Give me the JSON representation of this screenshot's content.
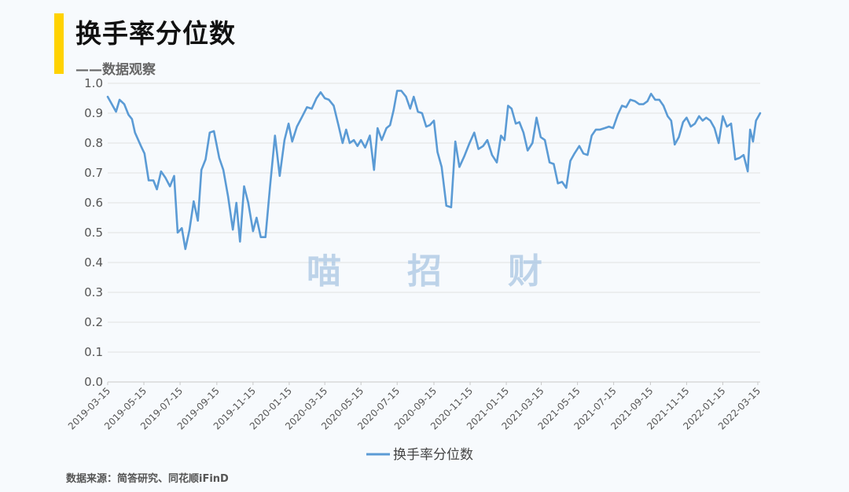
{
  "header": {
    "title": "换手率分位数",
    "subtitle": "——数据观察",
    "accent_color": "#ffd200"
  },
  "footer": {
    "source": "数据来源：简答研究、同花顺iFinD"
  },
  "watermark": {
    "chars": [
      "喵",
      "招",
      "财"
    ],
    "color": "#aac6e2"
  },
  "chart_data": {
    "type": "line",
    "title": "",
    "xlabel": "",
    "ylabel": "",
    "ylim": [
      0,
      1.0
    ],
    "y_ticks": [
      "0.0",
      "0.1",
      "0.2",
      "0.3",
      "0.4",
      "0.5",
      "0.6",
      "0.7",
      "0.8",
      "0.9",
      "1.0"
    ],
    "x_ticks": [
      "2019-03-15",
      "2019-05-15",
      "2019-07-15",
      "2019-09-15",
      "2019-11-15",
      "2020-01-15",
      "2020-03-15",
      "2020-05-15",
      "2020-07-15",
      "2020-09-15",
      "2020-11-15",
      "2021-01-15",
      "2021-03-15",
      "2021-05-15",
      "2021-07-15",
      "2021-09-15",
      "2021-11-15",
      "2022-01-15",
      "2022-03-15"
    ],
    "x_start": "2019-03-15",
    "x_end": "2022-03-19",
    "grid": true,
    "legend_position": "bottom",
    "series": [
      {
        "name": "换手率分位数",
        "color": "#5b9bd5",
        "points": [
          [
            "2019-03-15",
            0.955
          ],
          [
            "2019-03-29",
            0.905
          ],
          [
            "2019-04-04",
            0.945
          ],
          [
            "2019-04-12",
            0.93
          ],
          [
            "2019-04-19",
            0.895
          ],
          [
            "2019-04-25",
            0.88
          ],
          [
            "2019-04-30",
            0.835
          ],
          [
            "2019-05-10",
            0.79
          ],
          [
            "2019-05-16",
            0.765
          ],
          [
            "2019-05-23",
            0.675
          ],
          [
            "2019-05-31",
            0.675
          ],
          [
            "2019-06-06",
            0.645
          ],
          [
            "2019-06-13",
            0.705
          ],
          [
            "2019-06-20",
            0.685
          ],
          [
            "2019-06-28",
            0.655
          ],
          [
            "2019-07-05",
            0.69
          ],
          [
            "2019-07-11",
            0.5
          ],
          [
            "2019-07-18",
            0.515
          ],
          [
            "2019-07-24",
            0.445
          ],
          [
            "2019-07-31",
            0.51
          ],
          [
            "2019-08-07",
            0.605
          ],
          [
            "2019-08-14",
            0.54
          ],
          [
            "2019-08-20",
            0.71
          ],
          [
            "2019-08-27",
            0.745
          ],
          [
            "2019-09-03",
            0.835
          ],
          [
            "2019-09-10",
            0.84
          ],
          [
            "2019-09-19",
            0.75
          ],
          [
            "2019-09-26",
            0.71
          ],
          [
            "2019-10-04",
            0.62
          ],
          [
            "2019-10-12",
            0.51
          ],
          [
            "2019-10-18",
            0.6
          ],
          [
            "2019-10-24",
            0.47
          ],
          [
            "2019-10-31",
            0.655
          ],
          [
            "2019-11-07",
            0.6
          ],
          [
            "2019-11-15",
            0.505
          ],
          [
            "2019-11-21",
            0.55
          ],
          [
            "2019-11-28",
            0.485
          ],
          [
            "2019-12-06",
            0.485
          ],
          [
            "2019-12-14",
            0.66
          ],
          [
            "2019-12-22",
            0.825
          ],
          [
            "2019-12-30",
            0.69
          ],
          [
            "2020-01-07",
            0.81
          ],
          [
            "2020-01-14",
            0.865
          ],
          [
            "2020-01-20",
            0.805
          ],
          [
            "2020-01-28",
            0.855
          ],
          [
            "2020-02-05",
            0.885
          ],
          [
            "2020-02-14",
            0.92
          ],
          [
            "2020-02-22",
            0.915
          ],
          [
            "2020-03-01",
            0.95
          ],
          [
            "2020-03-08",
            0.97
          ],
          [
            "2020-03-15",
            0.95
          ],
          [
            "2020-03-22",
            0.945
          ],
          [
            "2020-03-30",
            0.925
          ],
          [
            "2020-04-07",
            0.86
          ],
          [
            "2020-04-14",
            0.8
          ],
          [
            "2020-04-20",
            0.845
          ],
          [
            "2020-04-26",
            0.8
          ],
          [
            "2020-05-03",
            0.81
          ],
          [
            "2020-05-09",
            0.79
          ],
          [
            "2020-05-15",
            0.81
          ],
          [
            "2020-05-22",
            0.785
          ],
          [
            "2020-05-30",
            0.825
          ],
          [
            "2020-06-06",
            0.71
          ],
          [
            "2020-06-12",
            0.85
          ],
          [
            "2020-06-19",
            0.81
          ],
          [
            "2020-06-27",
            0.85
          ],
          [
            "2020-07-03",
            0.86
          ],
          [
            "2020-07-09",
            0.91
          ],
          [
            "2020-07-15",
            0.975
          ],
          [
            "2020-07-22",
            0.975
          ],
          [
            "2020-07-30",
            0.955
          ],
          [
            "2020-08-06",
            0.915
          ],
          [
            "2020-08-12",
            0.955
          ],
          [
            "2020-08-19",
            0.905
          ],
          [
            "2020-08-26",
            0.9
          ],
          [
            "2020-09-02",
            0.855
          ],
          [
            "2020-09-08",
            0.86
          ],
          [
            "2020-09-15",
            0.875
          ],
          [
            "2020-09-21",
            0.77
          ],
          [
            "2020-09-28",
            0.72
          ],
          [
            "2020-10-06",
            0.59
          ],
          [
            "2020-10-14",
            0.585
          ],
          [
            "2020-10-21",
            0.805
          ],
          [
            "2020-10-28",
            0.72
          ],
          [
            "2020-11-05",
            0.755
          ],
          [
            "2020-11-14",
            0.8
          ],
          [
            "2020-11-22",
            0.835
          ],
          [
            "2020-11-29",
            0.78
          ],
          [
            "2020-12-07",
            0.79
          ],
          [
            "2020-12-14",
            0.81
          ],
          [
            "2020-12-22",
            0.76
          ],
          [
            "2020-12-30",
            0.735
          ],
          [
            "2021-01-06",
            0.825
          ],
          [
            "2021-01-12",
            0.81
          ],
          [
            "2021-01-18",
            0.925
          ],
          [
            "2021-01-24",
            0.915
          ],
          [
            "2021-01-31",
            0.865
          ],
          [
            "2021-02-06",
            0.87
          ],
          [
            "2021-02-13",
            0.835
          ],
          [
            "2021-02-20",
            0.775
          ],
          [
            "2021-02-28",
            0.8
          ],
          [
            "2021-03-07",
            0.885
          ],
          [
            "2021-03-14",
            0.82
          ],
          [
            "2021-03-21",
            0.81
          ],
          [
            "2021-03-29",
            0.735
          ],
          [
            "2021-04-05",
            0.73
          ],
          [
            "2021-04-12",
            0.665
          ],
          [
            "2021-04-19",
            0.67
          ],
          [
            "2021-04-26",
            0.65
          ],
          [
            "2021-05-03",
            0.74
          ],
          [
            "2021-05-10",
            0.765
          ],
          [
            "2021-05-18",
            0.79
          ],
          [
            "2021-05-25",
            0.765
          ],
          [
            "2021-06-01",
            0.76
          ],
          [
            "2021-06-08",
            0.825
          ],
          [
            "2021-06-15",
            0.845
          ],
          [
            "2021-06-22",
            0.845
          ],
          [
            "2021-06-30",
            0.85
          ],
          [
            "2021-07-07",
            0.855
          ],
          [
            "2021-07-14",
            0.85
          ],
          [
            "2021-07-22",
            0.895
          ],
          [
            "2021-07-29",
            0.925
          ],
          [
            "2021-08-05",
            0.92
          ],
          [
            "2021-08-12",
            0.945
          ],
          [
            "2021-08-20",
            0.94
          ],
          [
            "2021-08-27",
            0.93
          ],
          [
            "2021-09-03",
            0.93
          ],
          [
            "2021-09-10",
            0.94
          ],
          [
            "2021-09-16",
            0.965
          ],
          [
            "2021-09-23",
            0.945
          ],
          [
            "2021-09-30",
            0.945
          ],
          [
            "2021-10-07",
            0.925
          ],
          [
            "2021-10-14",
            0.89
          ],
          [
            "2021-10-20",
            0.875
          ],
          [
            "2021-10-26",
            0.795
          ],
          [
            "2021-11-02",
            0.82
          ],
          [
            "2021-11-09",
            0.87
          ],
          [
            "2021-11-15",
            0.885
          ],
          [
            "2021-11-22",
            0.855
          ],
          [
            "2021-11-29",
            0.865
          ],
          [
            "2021-12-06",
            0.89
          ],
          [
            "2021-12-12",
            0.875
          ],
          [
            "2021-12-18",
            0.885
          ],
          [
            "2021-12-25",
            0.875
          ],
          [
            "2022-01-01",
            0.85
          ],
          [
            "2022-01-08",
            0.8
          ],
          [
            "2022-01-15",
            0.89
          ],
          [
            "2022-01-22",
            0.855
          ],
          [
            "2022-01-29",
            0.865
          ],
          [
            "2022-02-05",
            0.745
          ],
          [
            "2022-02-12",
            0.75
          ],
          [
            "2022-02-19",
            0.76
          ],
          [
            "2022-02-26",
            0.705
          ],
          [
            "2022-03-02",
            0.845
          ],
          [
            "2022-03-07",
            0.805
          ],
          [
            "2022-03-12",
            0.875
          ],
          [
            "2022-03-19",
            0.9
          ]
        ]
      }
    ]
  }
}
